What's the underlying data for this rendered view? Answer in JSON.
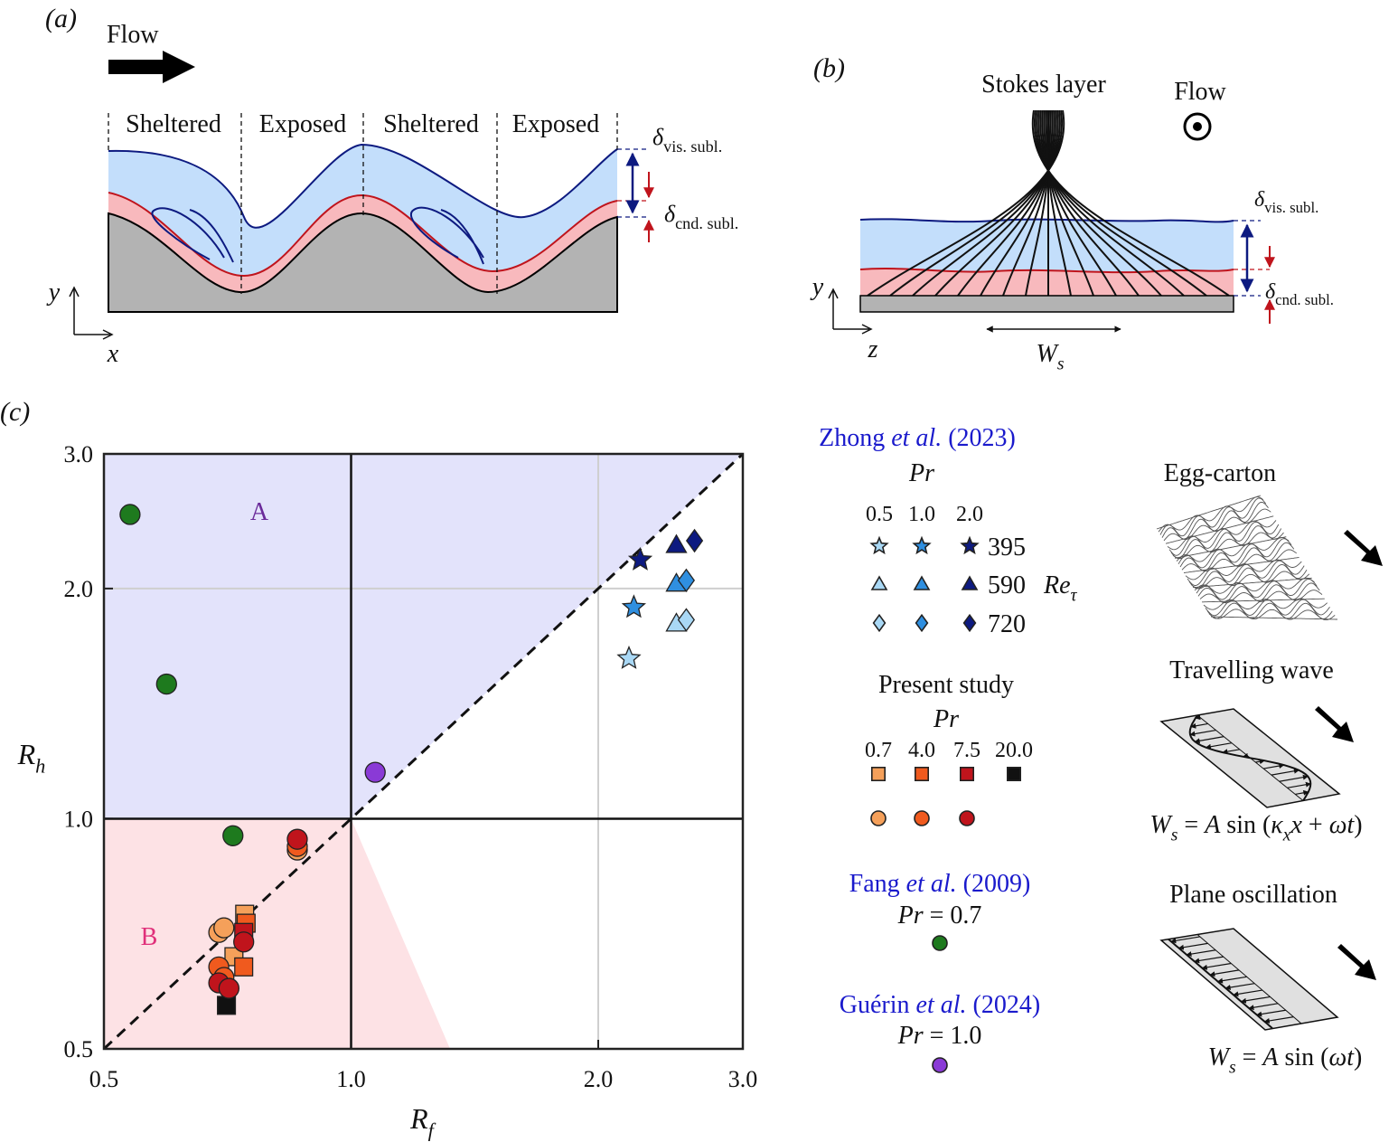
{
  "panel_a": {
    "label": "(a)",
    "flow": "Flow",
    "regions": [
      "Sheltered",
      "Exposed",
      "Sheltered",
      "Exposed"
    ],
    "delta_vis": [
      "δ",
      "vis. subl."
    ],
    "delta_cnd": [
      "δ",
      "cnd. subl."
    ],
    "y_axis": "y",
    "x_axis": "x"
  },
  "panel_b": {
    "label": "(b)",
    "stokes": "Stokes layer",
    "flow": "Flow",
    "delta_vis": [
      "δ",
      "vis. subl."
    ],
    "delta_cnd": [
      "δ",
      "cnd. subl."
    ],
    "y_axis": "y",
    "z_axis": "z",
    "width": [
      "W",
      "s"
    ]
  },
  "chart_data": {
    "type": "scatter",
    "panel_label": "(c)",
    "x_label": [
      "R",
      "f"
    ],
    "y_label": [
      "R",
      "h"
    ],
    "xscale": "log",
    "yscale": "log",
    "xlim": [
      0.5,
      3.0
    ],
    "ylim": [
      0.5,
      3.0
    ],
    "xticks": [
      0.5,
      {
        "value": 1,
        "label": "1.0"
      },
      {
        "value": 2,
        "label": "2.0"
      },
      {
        "value": 3,
        "label": "3.0"
      }
    ],
    "yticks": [
      0.5,
      {
        "value": 1,
        "label": "1.0"
      },
      {
        "value": 2,
        "label": "2.0"
      },
      {
        "value": 3,
        "label": "3.0"
      }
    ],
    "grid": true,
    "threshold": 1,
    "diagonal": true,
    "regions": [
      {
        "label": "A",
        "color": "#e3e3fb",
        "text_color": "#6a2a9a",
        "points": [
          [
            0.5,
            1
          ],
          [
            1,
            1
          ],
          [
            3,
            3
          ],
          [
            0.5,
            3
          ]
        ]
      },
      {
        "label": "B",
        "color": "#fde2e5",
        "text_color": "#e0307a",
        "points": [
          [
            0.5,
            0.5
          ],
          [
            1.32,
            0.5
          ],
          [
            1,
            1
          ],
          [
            0.5,
            1
          ]
        ]
      }
    ],
    "series": [
      {
        "marker": "star",
        "color": "#a9d8f5",
        "x": [
          2.18
        ],
        "values": [
          1.62
        ]
      },
      {
        "marker": "star",
        "color": "#2f8fe0",
        "x": [
          2.21
        ],
        "values": [
          1.89
        ]
      },
      {
        "marker": "star",
        "color": "#0d1a80",
        "x": [
          2.25
        ],
        "values": [
          2.18
        ]
      },
      {
        "marker": "triangle",
        "color": "#a9d8f5",
        "x": [
          2.49
        ],
        "values": [
          1.8
        ]
      },
      {
        "marker": "triangle",
        "color": "#2f8fe0",
        "x": [
          2.49
        ],
        "values": [
          2.03
        ]
      },
      {
        "marker": "triangle",
        "color": "#0d1a80",
        "x": [
          2.49
        ],
        "values": [
          2.28
        ]
      },
      {
        "marker": "diamond",
        "color": "#a9d8f5",
        "x": [
          2.56
        ],
        "values": [
          1.82
        ]
      },
      {
        "marker": "diamond",
        "color": "#2f8fe0",
        "x": [
          2.56
        ],
        "values": [
          2.05
        ]
      },
      {
        "marker": "diamond",
        "color": "#0d1a80",
        "x": [
          2.62
        ],
        "values": [
          2.31
        ]
      },
      {
        "marker": "square",
        "color": "#f5a05a",
        "x": [
          0.742,
          0.72
        ],
        "values": [
          0.75,
          0.66
        ]
      },
      {
        "marker": "square",
        "color": "#f05a1e",
        "x": [
          0.745,
          0.74
        ],
        "values": [
          0.73,
          0.64
        ]
      },
      {
        "marker": "square",
        "color": "#c0141c",
        "x": [
          0.74
        ],
        "values": [
          0.71
        ]
      },
      {
        "marker": "square",
        "color": "#111111",
        "x": [
          0.705
        ],
        "values": [
          0.57
        ]
      },
      {
        "marker": "circle",
        "color": "#f5a05a",
        "x": [
          0.69,
          0.7,
          0.86
        ],
        "values": [
          0.71,
          0.72,
          0.91
        ]
      },
      {
        "marker": "circle",
        "color": "#f05a1e",
        "x": [
          0.69,
          0.7,
          0.86
        ],
        "values": [
          0.64,
          0.62,
          0.92
        ]
      },
      {
        "marker": "circle",
        "color": "#c0141c",
        "x": [
          0.74,
          0.69,
          0.71,
          0.86
        ],
        "values": [
          0.69,
          0.61,
          0.6,
          0.94
        ]
      },
      {
        "marker": "circle",
        "color": "#1e7a1e",
        "x": [
          0.538,
          0.596,
          0.718
        ],
        "values": [
          2.5,
          1.5,
          0.95
        ]
      },
      {
        "marker": "circle",
        "color": "#8a3ad6",
        "x": [
          1.07
        ],
        "values": [
          1.15
        ]
      }
    ]
  },
  "legend": {
    "zhong": {
      "citation": [
        "Zhong ",
        "et al.",
        " (2023)"
      ],
      "header": "Pr",
      "columns": [
        "0.5",
        "1.0",
        "2.0"
      ],
      "rows": [
        "395",
        "590",
        "720"
      ],
      "row_header": [
        "Re",
        "τ"
      ]
    },
    "present": {
      "title": "Present study",
      "header": "Pr",
      "columns": [
        "0.7",
        "4.0",
        "7.5",
        "20.0"
      ]
    },
    "fang": {
      "citation": [
        "Fang ",
        "et al.",
        " (2009)"
      ],
      "note": [
        "Pr",
        " = 0.7"
      ]
    },
    "guerin": {
      "citation": [
        "Guérin ",
        "et al.",
        " (2024)"
      ],
      "note": [
        "Pr",
        " = 1.0"
      ]
    }
  },
  "schematics": {
    "egg": "Egg-carton",
    "wave": "Travelling wave",
    "wave_formula": [
      "W",
      "s",
      " = ",
      "A",
      " sin (",
      "κ",
      "x",
      "x",
      " + ",
      "ω",
      "t",
      ")"
    ],
    "plane": "Plane oscillation",
    "plane_formula": [
      "W",
      "s",
      " = ",
      "A",
      " sin (",
      "ω",
      "t",
      ")"
    ]
  }
}
